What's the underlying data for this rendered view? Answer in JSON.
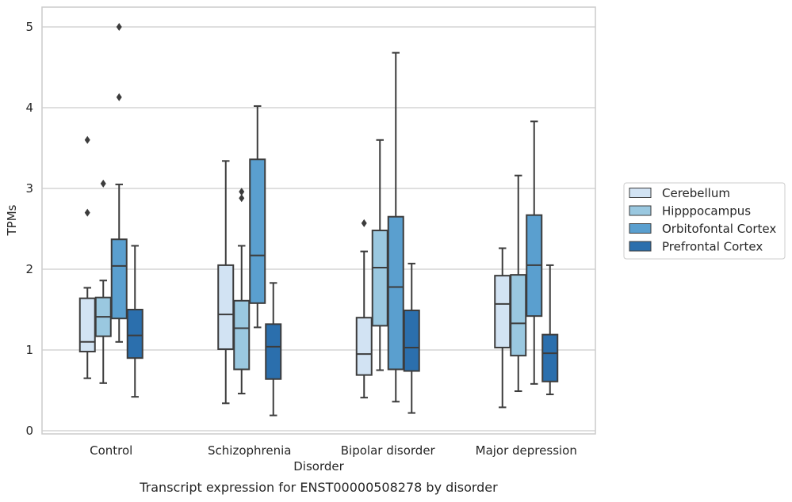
{
  "chart_data": {
    "type": "box",
    "title": "Transcript expression for ENST00000508278 by disorder",
    "xlabel": "Disorder",
    "ylabel": "TPMs",
    "ylim": [
      -0.05,
      5.25
    ],
    "yticks": [
      0,
      1,
      2,
      3,
      4,
      5
    ],
    "grid": "horizontal",
    "legend_position": "right",
    "categories": [
      "Control",
      "Schizophrenia",
      "Bipolar disorder",
      "Major depression"
    ],
    "series": [
      {
        "name": "Cerebellum",
        "color": "#d2e3f3",
        "boxes": [
          {
            "whisker_low": 0.65,
            "q1": 0.98,
            "median": 1.1,
            "q3": 1.64,
            "whisker_high": 1.77,
            "outliers": [
              2.7,
              3.6
            ]
          },
          {
            "whisker_low": 0.34,
            "q1": 1.01,
            "median": 1.44,
            "q3": 2.05,
            "whisker_high": 3.34,
            "outliers": []
          },
          {
            "whisker_low": 0.41,
            "q1": 0.69,
            "median": 0.95,
            "q3": 1.4,
            "whisker_high": 2.22,
            "outliers": [
              2.57
            ]
          },
          {
            "whisker_low": 0.29,
            "q1": 1.03,
            "median": 1.57,
            "q3": 1.92,
            "whisker_high": 2.26,
            "outliers": []
          }
        ]
      },
      {
        "name": "Hipppocampus",
        "color": "#9ac8e0",
        "boxes": [
          {
            "whisker_low": 0.59,
            "q1": 1.17,
            "median": 1.41,
            "q3": 1.65,
            "whisker_high": 1.86,
            "outliers": [
              3.06
            ]
          },
          {
            "whisker_low": 0.46,
            "q1": 0.76,
            "median": 1.27,
            "q3": 1.61,
            "whisker_high": 2.29,
            "outliers": [
              2.88,
              2.96
            ]
          },
          {
            "whisker_low": 0.75,
            "q1": 1.3,
            "median": 2.02,
            "q3": 2.48,
            "whisker_high": 3.6,
            "outliers": []
          },
          {
            "whisker_low": 0.49,
            "q1": 0.93,
            "median": 1.33,
            "q3": 1.93,
            "whisker_high": 3.16,
            "outliers": []
          }
        ]
      },
      {
        "name": "Orbitofontal Cortex",
        "color": "#5a9fcf",
        "boxes": [
          {
            "whisker_low": 1.1,
            "q1": 1.39,
            "median": 2.04,
            "q3": 2.37,
            "whisker_high": 3.05,
            "outliers": [
              4.13,
              5.0
            ]
          },
          {
            "whisker_low": 1.28,
            "q1": 1.58,
            "median": 2.17,
            "q3": 3.36,
            "whisker_high": 4.02,
            "outliers": []
          },
          {
            "whisker_low": 0.36,
            "q1": 0.76,
            "median": 1.78,
            "q3": 2.65,
            "whisker_high": 4.68,
            "outliers": []
          },
          {
            "whisker_low": 0.58,
            "q1": 1.42,
            "median": 2.05,
            "q3": 2.67,
            "whisker_high": 3.83,
            "outliers": []
          }
        ]
      },
      {
        "name": "Prefrontal Cortex",
        "color": "#2b6fad",
        "boxes": [
          {
            "whisker_low": 0.42,
            "q1": 0.9,
            "median": 1.18,
            "q3": 1.5,
            "whisker_high": 2.29,
            "outliers": []
          },
          {
            "whisker_low": 0.19,
            "q1": 0.64,
            "median": 1.04,
            "q3": 1.32,
            "whisker_high": 1.83,
            "outliers": []
          },
          {
            "whisker_low": 0.22,
            "q1": 0.74,
            "median": 1.03,
            "q3": 1.49,
            "whisker_high": 2.07,
            "outliers": []
          },
          {
            "whisker_low": 0.45,
            "q1": 0.61,
            "median": 0.96,
            "q3": 1.19,
            "whisker_high": 2.05,
            "outliers": []
          }
        ]
      }
    ]
  }
}
